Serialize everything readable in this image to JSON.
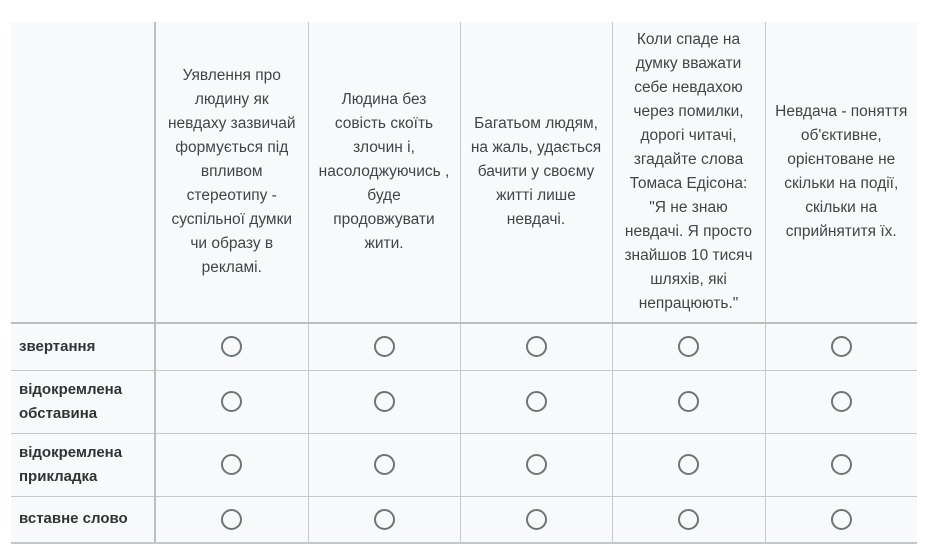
{
  "columns": [
    "Уявлення про людину як невдаху зазвичай формується під впливом стереотипу - суспільної думки чи образу в рекламі.",
    "Людина без совість скоїть злочин і, насолоджуючись , буде продовжувати жити.",
    "Багатьом людям, на жаль, удається бачити у своєму житті лише невдачі.",
    "Коли спаде на думку вважати себе невдахою через помилки, дорогі читачі, згадайте слова Томаса Едісона: \"Я не знаю невдачі. Я просто знайшов 10 тисяч шляхів, які непрацюють.\"",
    "Невдача - поняття об'єктивне, орієнтоване не скільки на події, скільки на сприйнятитя їх."
  ],
  "rows": [
    "звертання",
    "відокремлена обставина",
    "відокремлена прикладка",
    "вставне слово"
  ],
  "icons": {
    "radio": "radio-unchecked-icon"
  },
  "colors": {
    "border": "#c3c8cb",
    "radio": "#6e7478",
    "background": "#f8f9fa"
  }
}
